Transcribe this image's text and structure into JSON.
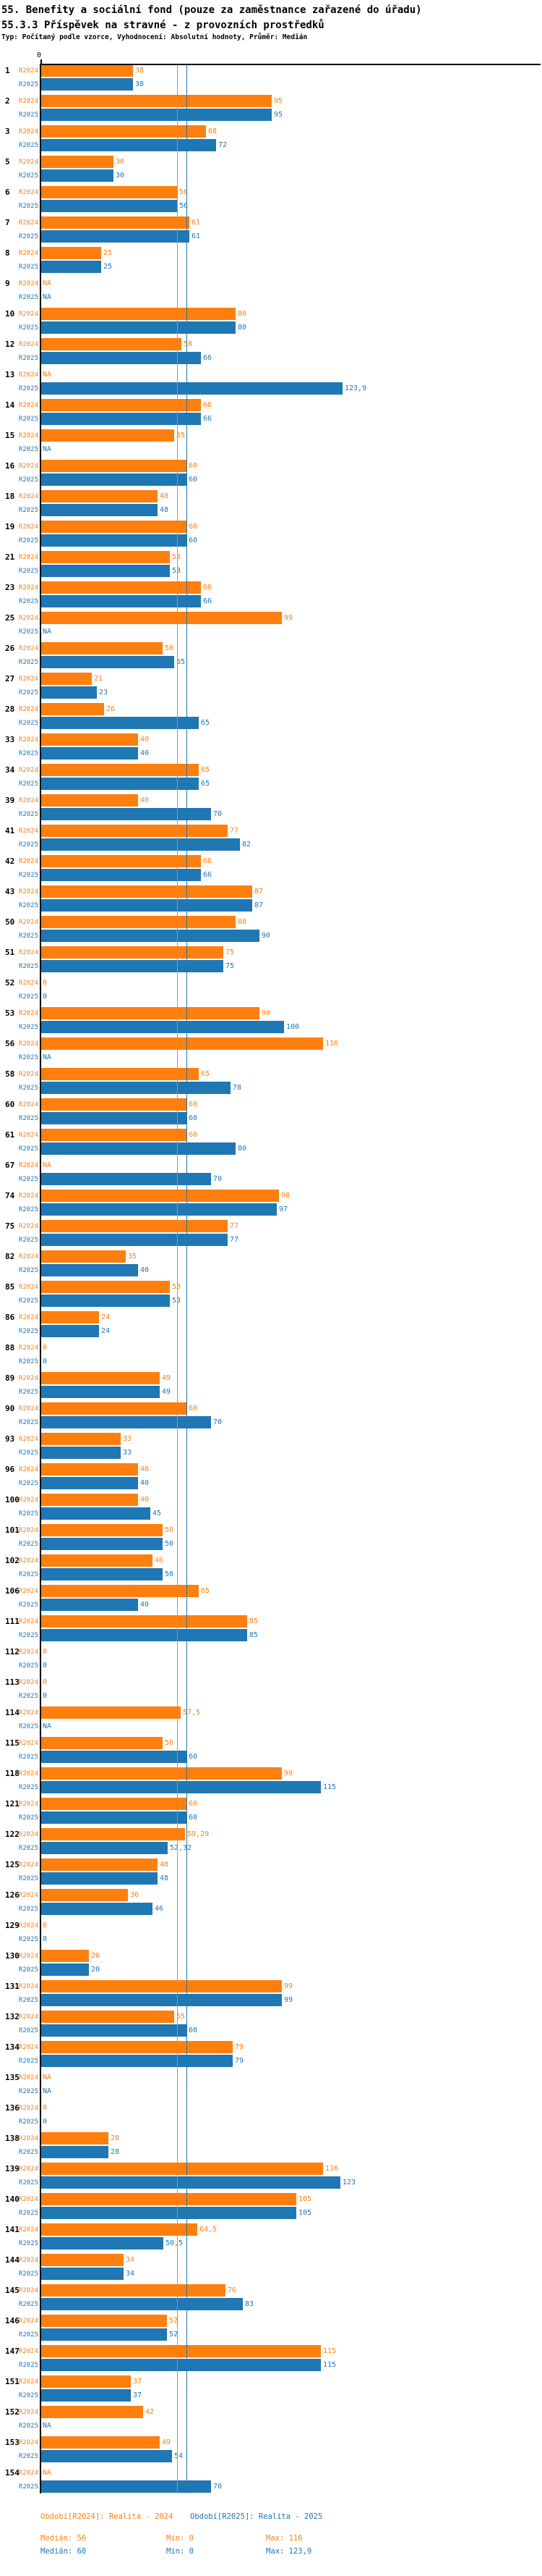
{
  "header": {
    "title": "55. Benefity a sociální fond (pouze za zaměstnance zařazené do úřadu)",
    "subtitle": "55.3.3 Příspěvek na stravné - z provozních prostředků",
    "meta": "Typ: Počítaný podle vzorce, Vyhodnocení: Absolutní hodnoty, Průměr: Medián"
  },
  "axis": {
    "zero_label": "0"
  },
  "chart_data": {
    "type": "bar",
    "orientation": "horizontal",
    "xlim": [
      0,
      205
    ],
    "grid": false,
    "legend_position": "bottom",
    "na_text": "NA",
    "series": [
      {
        "key": "R2024",
        "legend": "Období[R2024]: Realita - 2024",
        "color": "#FF7F0E",
        "median": 56,
        "min": 0,
        "max": 116
      },
      {
        "key": "R2025",
        "legend": "Období[R2025]: Realita - 2025",
        "color": "#1F77B4",
        "median": 60,
        "min": 0,
        "max": 123.9
      }
    ],
    "rows": [
      [
        "1",
        38,
        38
      ],
      [
        "2",
        95,
        95
      ],
      [
        "3",
        68,
        72
      ],
      [
        "5",
        30,
        30
      ],
      [
        "6",
        56,
        56
      ],
      [
        "7",
        61,
        61
      ],
      [
        "8",
        25,
        25
      ],
      [
        "9",
        null,
        null
      ],
      [
        "10",
        80,
        80
      ],
      [
        "12",
        58,
        66
      ],
      [
        "13",
        null,
        123.9
      ],
      [
        "14",
        66,
        66
      ],
      [
        "15",
        55,
        null
      ],
      [
        "16",
        60,
        60
      ],
      [
        "18",
        48,
        48
      ],
      [
        "19",
        60,
        60
      ],
      [
        "21",
        53,
        53
      ],
      [
        "23",
        66,
        66
      ],
      [
        "25",
        99,
        null
      ],
      [
        "26",
        50,
        55
      ],
      [
        "27",
        21,
        23
      ],
      [
        "28",
        26,
        65
      ],
      [
        "33",
        40,
        40
      ],
      [
        "34",
        65,
        65
      ],
      [
        "39",
        40,
        70
      ],
      [
        "41",
        77,
        82
      ],
      [
        "42",
        66,
        66
      ],
      [
        "43",
        87,
        87
      ],
      [
        "50",
        80,
        90
      ],
      [
        "51",
        75,
        75
      ],
      [
        "52",
        0,
        0
      ],
      [
        "53",
        90,
        100
      ],
      [
        "56",
        116,
        null
      ],
      [
        "58",
        65,
        78
      ],
      [
        "60",
        60,
        60
      ],
      [
        "61",
        60,
        80
      ],
      [
        "67",
        null,
        70
      ],
      [
        "74",
        98,
        97
      ],
      [
        "75",
        77,
        77
      ],
      [
        "82",
        35,
        40
      ],
      [
        "85",
        53,
        53
      ],
      [
        "86",
        24,
        24
      ],
      [
        "88",
        0,
        0
      ],
      [
        "89",
        49,
        49
      ],
      [
        "90",
        60,
        70
      ],
      [
        "93",
        33,
        33
      ],
      [
        "96",
        40,
        40
      ],
      [
        "100",
        40,
        45
      ],
      [
        "101",
        50,
        50
      ],
      [
        "102",
        46,
        50
      ],
      [
        "106",
        65,
        40
      ],
      [
        "111",
        85,
        85
      ],
      [
        "112",
        0,
        0
      ],
      [
        "113",
        0,
        0
      ],
      [
        "114",
        57.5,
        null
      ],
      [
        "115",
        50,
        60
      ],
      [
        "118",
        99,
        115
      ],
      [
        "121",
        60,
        60
      ],
      [
        "122",
        59.29,
        52.32
      ],
      [
        "125",
        48,
        48
      ],
      [
        "126",
        36,
        46
      ],
      [
        "129",
        0,
        0
      ],
      [
        "130",
        20,
        20
      ],
      [
        "131",
        99,
        99
      ],
      [
        "132",
        55,
        60
      ],
      [
        "134",
        79,
        79
      ],
      [
        "135",
        null,
        null
      ],
      [
        "136",
        0,
        0
      ],
      [
        "138",
        28,
        28
      ],
      [
        "139",
        116,
        123
      ],
      [
        "140",
        105,
        105
      ],
      [
        "141",
        64.5,
        50.5
      ],
      [
        "144",
        34,
        34
      ],
      [
        "145",
        76,
        83
      ],
      [
        "146",
        52,
        52
      ],
      [
        "147",
        115,
        115
      ],
      [
        "151",
        37,
        37
      ],
      [
        "152",
        42,
        null
      ],
      [
        "153",
        49,
        54
      ],
      [
        "154",
        null,
        70
      ]
    ]
  },
  "footer": {
    "legend_2024": "Období[R2024]: Realita - 2024",
    "legend_2025": "Období[R2025]: Realita - 2025",
    "stats_2024": {
      "median": "Medián: 56",
      "min": "Min: 0",
      "max": "Max: 116"
    },
    "stats_2025": {
      "median": "Medián: 60",
      "min": "Min: 0",
      "max": "Max: 123,9"
    }
  }
}
